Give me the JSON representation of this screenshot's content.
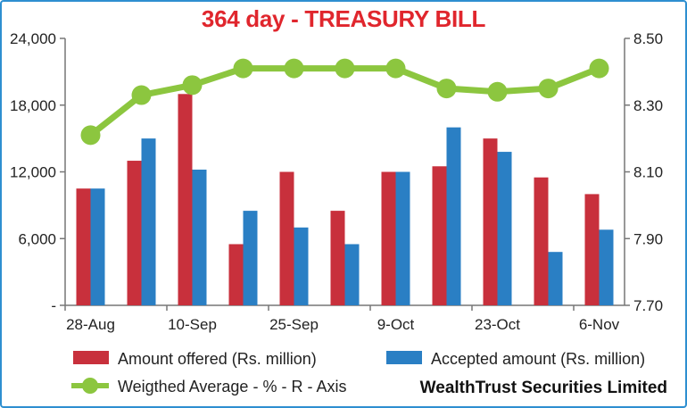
{
  "title": "364 day - TREASURY BILL",
  "source": "WealthTrust Securities Limited",
  "colors": {
    "offered": "#c8303c",
    "accepted": "#2a7fc4",
    "average": "#8cc63f",
    "title": "#e0262d",
    "frame": "#2e8fd0"
  },
  "chart_data": {
    "type": "bar",
    "title": "364 day - TREASURY BILL",
    "categories": [
      "28-Aug",
      "",
      "10-Sep",
      "",
      "25-Sep",
      "",
      "9-Oct",
      "",
      "23-Oct",
      "",
      "6-Nov"
    ],
    "x_tick_labels": [
      "28-Aug",
      "10-Sep",
      "25-Sep",
      "9-Oct",
      "23-Oct",
      "6-Nov"
    ],
    "series": [
      {
        "name": "Amount offered (Rs. million)",
        "type": "bar",
        "axis": "left",
        "values": [
          10500,
          13000,
          19000,
          5500,
          12000,
          8500,
          12000,
          12500,
          15000,
          11500,
          10000
        ]
      },
      {
        "name": "Accepted amount (Rs. million)",
        "type": "bar",
        "axis": "left",
        "values": [
          10500,
          15000,
          12200,
          8500,
          7000,
          5500,
          12000,
          16000,
          13800,
          4800,
          6800
        ]
      },
      {
        "name": "Weigthed Average - % - R - Axis",
        "type": "line",
        "axis": "right",
        "values": [
          8.21,
          8.33,
          8.36,
          8.41,
          8.41,
          8.41,
          8.41,
          8.35,
          8.34,
          8.35,
          8.41
        ]
      }
    ],
    "y_left": {
      "ylim": [
        0,
        24000
      ],
      "ticks": [
        0,
        6000,
        12000,
        18000,
        24000
      ],
      "tick_labels": [
        "-",
        "6,000",
        "12,000",
        "18,000",
        "24,000"
      ]
    },
    "y_right": {
      "ylim": [
        7.7,
        8.5
      ],
      "ticks": [
        7.7,
        7.9,
        8.1,
        8.3,
        8.5
      ],
      "tick_labels": [
        "7.70",
        "7.90",
        "8.10",
        "8.30",
        "8.50"
      ]
    },
    "grid": false,
    "legend": "bottom"
  },
  "legend": {
    "offered": "Amount offered (Rs. million)",
    "accepted": "Accepted amount (Rs. million)",
    "average": "Weigthed Average - % - R - Axis"
  }
}
